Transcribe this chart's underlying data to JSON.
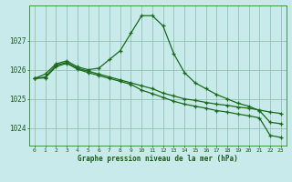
{
  "xlabel": "Graphe pression niveau de la mer (hPa)",
  "background_color": "#c8eaea",
  "grid_color": "#88bbaa",
  "line_color": "#1a6a1a",
  "x_ticks": [
    0,
    1,
    2,
    3,
    4,
    5,
    6,
    7,
    8,
    9,
    10,
    11,
    12,
    13,
    14,
    15,
    16,
    17,
    18,
    19,
    20,
    21,
    22,
    23
  ],
  "ylim": [
    1023.4,
    1028.2
  ],
  "yticks": [
    1024,
    1025,
    1026,
    1027
  ],
  "line1": [
    1025.7,
    1025.85,
    1026.2,
    1026.3,
    1026.1,
    1026.0,
    1026.05,
    1026.35,
    1026.65,
    1027.25,
    1027.85,
    1027.85,
    1027.5,
    1026.55,
    1025.9,
    1025.55,
    1025.35,
    1025.15,
    1025.0,
    1024.85,
    1024.75,
    1024.6,
    1024.2,
    1024.15
  ],
  "line2": [
    1025.7,
    1025.75,
    1026.15,
    1026.25,
    1026.05,
    1025.95,
    1025.85,
    1025.75,
    1025.65,
    1025.55,
    1025.45,
    1025.35,
    1025.2,
    1025.1,
    1025.0,
    1024.95,
    1024.88,
    1024.82,
    1024.78,
    1024.72,
    1024.68,
    1024.62,
    1024.55,
    1024.5
  ],
  "line3": [
    1025.7,
    1025.72,
    1026.1,
    1026.22,
    1026.02,
    1025.9,
    1025.8,
    1025.7,
    1025.6,
    1025.5,
    1025.3,
    1025.18,
    1025.05,
    1024.92,
    1024.82,
    1024.75,
    1024.68,
    1024.6,
    1024.55,
    1024.48,
    1024.42,
    1024.35,
    1023.75,
    1023.68
  ]
}
